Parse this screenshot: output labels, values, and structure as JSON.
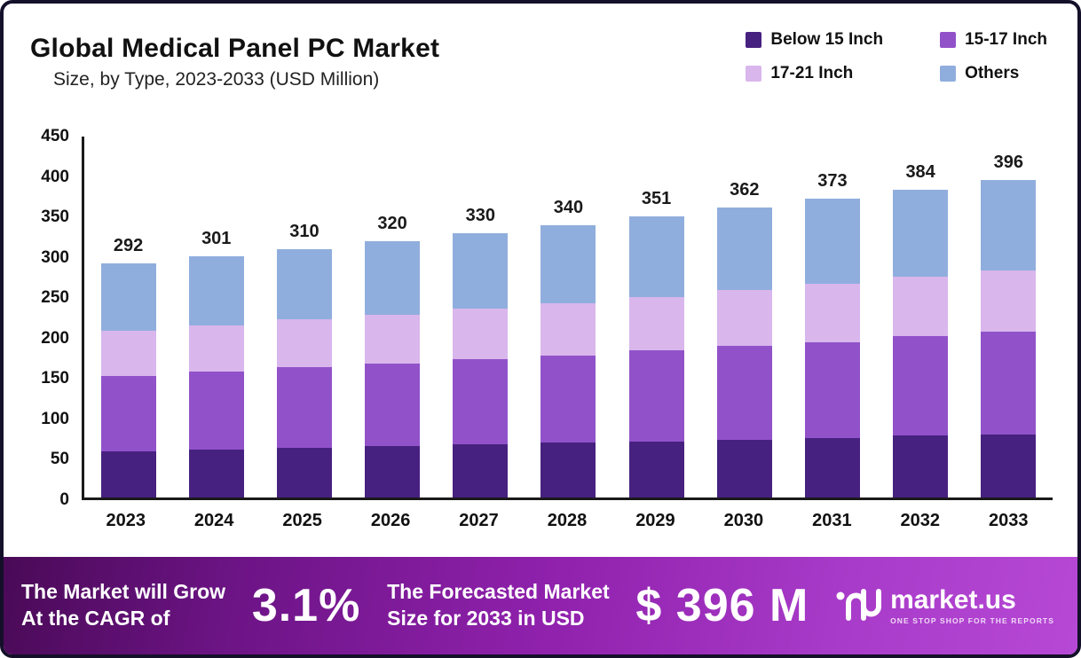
{
  "header": {
    "title": "Global Medical Panel PC Market",
    "subtitle": "Size, by Type, 2023-2033 (USD Million)"
  },
  "legend": [
    {
      "label": "Below 15 Inch",
      "color": "#472180"
    },
    {
      "label": "15-17 Inch",
      "color": "#9152c9"
    },
    {
      "label": "17-21 Inch",
      "color": "#d9b6ec"
    },
    {
      "label": "Others",
      "color": "#90aedd"
    }
  ],
  "chart_data": {
    "type": "bar",
    "stacked": true,
    "title": "Global Medical Panel PC Market",
    "subtitle": "Size, by Type, 2023-2033 (USD Million)",
    "categories": [
      "2023",
      "2024",
      "2025",
      "2026",
      "2027",
      "2028",
      "2029",
      "2030",
      "2031",
      "2032",
      "2033"
    ],
    "series": [
      {
        "name": "Below 15 Inch",
        "color": "#472180",
        "values": [
          58,
          60,
          62,
          64,
          66,
          68,
          70,
          72,
          74,
          77,
          79
        ]
      },
      {
        "name": "15-17 Inch",
        "color": "#9152c9",
        "values": [
          94,
          97,
          100,
          103,
          106,
          109,
          113,
          117,
          120,
          124,
          128
        ]
      },
      {
        "name": "17-21 Inch",
        "color": "#d9b6ec",
        "values": [
          56,
          58,
          60,
          61,
          63,
          65,
          67,
          70,
          72,
          74,
          76
        ]
      },
      {
        "name": "Others",
        "color": "#90aedd",
        "values": [
          84,
          86,
          88,
          92,
          95,
          98,
          101,
          103,
          107,
          109,
          113
        ]
      }
    ],
    "totals": [
      292,
      301,
      310,
      320,
      330,
      340,
      351,
      362,
      373,
      384,
      396
    ],
    "ylim": [
      0,
      450
    ],
    "ytick_step": 50,
    "grid": false,
    "legend_position": "top-right"
  },
  "banner": {
    "cagr_line1": "The Market will Grow",
    "cagr_line2": "At the CAGR of",
    "cagr_value": "3.1%",
    "forecast_line1": "The Forecasted Market",
    "forecast_line2": "Size for 2033 in USD",
    "forecast_value": "$ 396 M",
    "brand": "market.us",
    "brand_tagline": "ONE STOP SHOP FOR THE REPORTS"
  }
}
